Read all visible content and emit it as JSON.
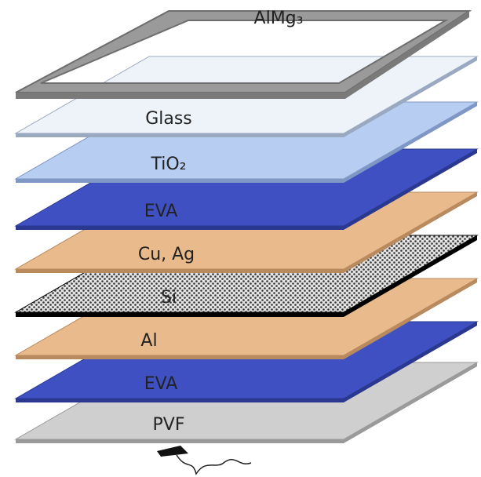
{
  "frame": {
    "label": "AlMg₃"
  },
  "layers": [
    {
      "label": "Glass"
    },
    {
      "label": "TiO₂"
    },
    {
      "label": "EVA"
    },
    {
      "label": "Cu, Ag"
    },
    {
      "label": "Si"
    },
    {
      "label": "Al"
    },
    {
      "label": "EVA"
    },
    {
      "label": "PVF"
    }
  ]
}
